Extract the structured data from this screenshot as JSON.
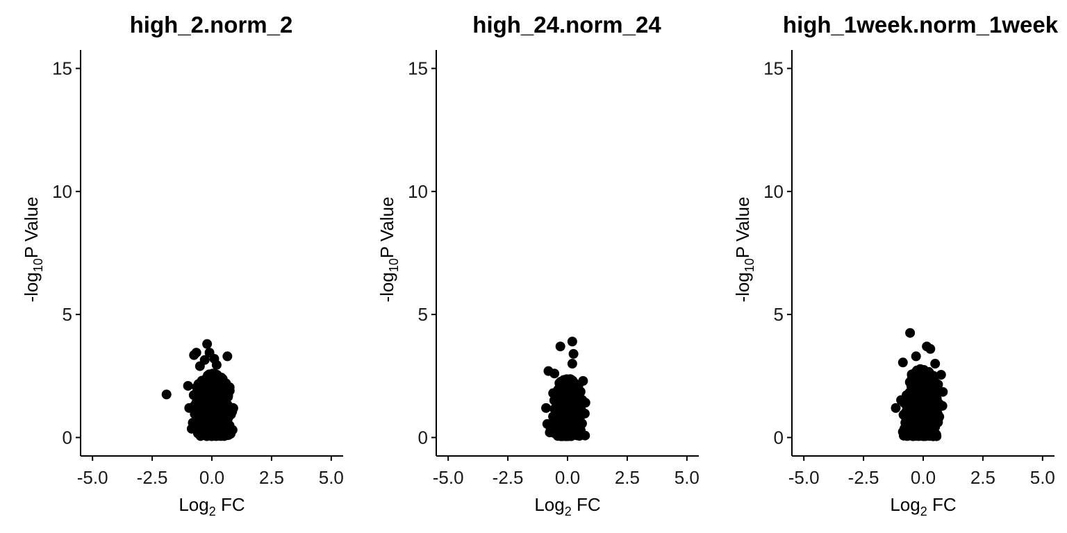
{
  "chart_data": [
    {
      "type": "scatter",
      "title": "high_2.norm_2",
      "xlabel": {
        "base": "Log",
        "sub": "2",
        "rest": " FC"
      },
      "ylabel": {
        "pre": "-log",
        "sub": "10",
        "rest": "P Value"
      },
      "xlim": [
        -5.5,
        5.5
      ],
      "ylim": [
        -0.75,
        15.75
      ],
      "xticks": [
        -5.0,
        -2.5,
        0.0,
        2.5,
        5.0
      ],
      "xtick_labels": [
        "-5.0",
        "-2.5",
        "0.0",
        "2.5",
        "5.0"
      ],
      "yticks": [
        0,
        5,
        10,
        15
      ],
      "ytick_labels": [
        "0",
        "5",
        "10",
        "15"
      ],
      "cluster": {
        "center": 0.05,
        "x_sd": 0.3,
        "x_max": 0.9,
        "y_min": 0.05,
        "y_max": 2.6,
        "count": 720
      },
      "outliers": [
        {
          "x": -1.9,
          "y": 1.75
        },
        {
          "x": -1.0,
          "y": 2.1
        },
        {
          "x": -0.95,
          "y": 1.2
        },
        {
          "x": -0.75,
          "y": 3.35
        },
        {
          "x": -0.65,
          "y": 3.45
        },
        {
          "x": -0.5,
          "y": 2.9
        },
        {
          "x": -0.3,
          "y": 3.15
        },
        {
          "x": -0.2,
          "y": 3.8
        },
        {
          "x": -0.1,
          "y": 3.45
        },
        {
          "x": 0.1,
          "y": 3.2
        },
        {
          "x": 0.2,
          "y": 2.95
        },
        {
          "x": 0.65,
          "y": 3.3
        },
        {
          "x": 0.75,
          "y": 1.9
        },
        {
          "x": 0.85,
          "y": 1.05
        },
        {
          "x": -0.8,
          "y": 0.6
        }
      ]
    },
    {
      "type": "scatter",
      "title": "high_24.norm_24",
      "xlabel": {
        "base": "Log",
        "sub": "2",
        "rest": " FC"
      },
      "ylabel": {
        "pre": "-log",
        "sub": "10",
        "rest": "P Value"
      },
      "xlim": [
        -5.5,
        5.5
      ],
      "ylim": [
        -0.75,
        15.75
      ],
      "xticks": [
        -5.0,
        -2.5,
        0.0,
        2.5,
        5.0
      ],
      "xtick_labels": [
        "-5.0",
        "-2.5",
        "0.0",
        "2.5",
        "5.0"
      ],
      "yticks": [
        0,
        5,
        10,
        15
      ],
      "ytick_labels": [
        "0",
        "5",
        "10",
        "15"
      ],
      "cluster": {
        "center": 0.0,
        "x_sd": 0.25,
        "x_max": 0.75,
        "y_min": 0.05,
        "y_max": 2.4,
        "count": 720
      },
      "outliers": [
        {
          "x": -0.3,
          "y": 3.7
        },
        {
          "x": 0.2,
          "y": 3.9
        },
        {
          "x": 0.25,
          "y": 3.4
        },
        {
          "x": 0.2,
          "y": 3.0
        },
        {
          "x": -0.8,
          "y": 2.7
        },
        {
          "x": -0.9,
          "y": 1.2
        },
        {
          "x": -0.85,
          "y": 0.55
        },
        {
          "x": 0.65,
          "y": 2.3
        },
        {
          "x": 0.55,
          "y": 0.3
        },
        {
          "x": -0.55,
          "y": 2.6
        },
        {
          "x": 0.45,
          "y": 1.7
        }
      ]
    },
    {
      "type": "scatter",
      "title": "high_1week.norm_1week",
      "xlabel": {
        "base": "Log",
        "sub": "2",
        "rest": " FC"
      },
      "ylabel": {
        "pre": "-log",
        "sub": "10",
        "rest": "P Value"
      },
      "xlim": [
        -5.5,
        5.5
      ],
      "ylim": [
        -0.75,
        15.75
      ],
      "xticks": [
        -5.0,
        -2.5,
        0.0,
        2.5,
        5.0
      ],
      "xtick_labels": [
        "-5.0",
        "-2.5",
        "0.0",
        "2.5",
        "5.0"
      ],
      "yticks": [
        0,
        5,
        10,
        15
      ],
      "ytick_labels": [
        "0",
        "5",
        "10",
        "15"
      ],
      "cluster": {
        "center": -0.05,
        "x_sd": 0.3,
        "x_max": 0.9,
        "y_min": 0.05,
        "y_max": 2.8,
        "count": 760
      },
      "outliers": [
        {
          "x": -0.55,
          "y": 4.25
        },
        {
          "x": 0.15,
          "y": 3.7
        },
        {
          "x": 0.3,
          "y": 3.6
        },
        {
          "x": -0.3,
          "y": 3.3
        },
        {
          "x": -0.85,
          "y": 3.05
        },
        {
          "x": -1.15,
          "y": 1.2
        },
        {
          "x": -0.75,
          "y": 0.6
        },
        {
          "x": 0.75,
          "y": 2.55
        },
        {
          "x": 0.5,
          "y": 3.0
        },
        {
          "x": 0.6,
          "y": 0.9
        },
        {
          "x": -0.65,
          "y": 0.3
        }
      ]
    }
  ]
}
